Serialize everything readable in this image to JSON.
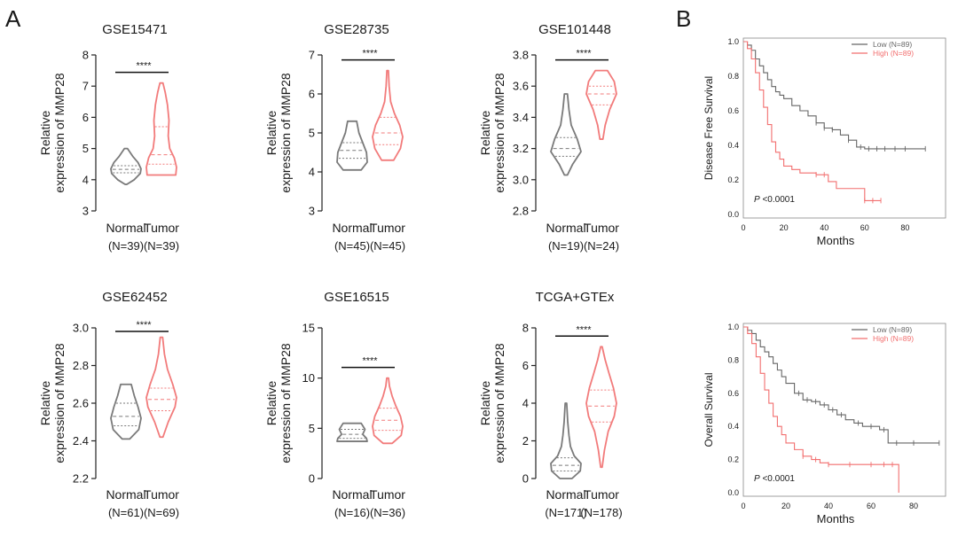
{
  "panel_labels": [
    "A",
    "B"
  ],
  "colors": {
    "normal": "#7a7a7a",
    "tumor": "#f27b7b",
    "axis": "#222222",
    "km_low": "#666666",
    "km_high": "#f26f6f"
  },
  "chart_data": [
    {
      "type": "violin",
      "title": "GSE15471",
      "ylabel_line1": "Relative",
      "ylabel_line2": "expression of MMP28",
      "ylim": [
        3,
        8
      ],
      "yticks": [
        "3",
        "4",
        "5",
        "6",
        "7",
        "8"
      ],
      "significance": "****",
      "groups": [
        {
          "name": "Normal",
          "n": "(N=39)",
          "min": 3.85,
          "max": 5.0,
          "median": 4.33,
          "q1": 4.22,
          "q3": 4.45,
          "shape": [
            [
              3.85,
              0.05
            ],
            [
              4.0,
              0.55
            ],
            [
              4.2,
              0.95
            ],
            [
              4.35,
              1.0
            ],
            [
              4.55,
              0.8
            ],
            [
              4.75,
              0.45
            ],
            [
              5.0,
              0.1
            ]
          ]
        },
        {
          "name": "Tumor",
          "n": "(N=39)",
          "min": 4.15,
          "max": 7.1,
          "median": 4.8,
          "q1": 4.5,
          "q3": 5.7,
          "shape": [
            [
              4.15,
              0.95
            ],
            [
              4.4,
              1.0
            ],
            [
              4.7,
              0.85
            ],
            [
              5.0,
              0.55
            ],
            [
              5.4,
              0.45
            ],
            [
              5.9,
              0.5
            ],
            [
              6.4,
              0.4
            ],
            [
              6.8,
              0.25
            ],
            [
              7.1,
              0.1
            ]
          ]
        }
      ]
    },
    {
      "type": "violin",
      "title": "GSE28735",
      "ylabel_line1": "Relative",
      "ylabel_line2": "expression of MMP28",
      "ylim": [
        3,
        7
      ],
      "yticks": [
        "3",
        "4",
        "5",
        "6",
        "7"
      ],
      "significance": "****",
      "groups": [
        {
          "name": "Normal",
          "n": "(N=45)",
          "min": 4.05,
          "max": 5.3,
          "median": 4.55,
          "q1": 4.35,
          "q3": 4.75,
          "shape": [
            [
              4.05,
              0.6
            ],
            [
              4.25,
              1.0
            ],
            [
              4.5,
              0.95
            ],
            [
              4.75,
              0.7
            ],
            [
              5.0,
              0.45
            ],
            [
              5.3,
              0.3
            ]
          ]
        },
        {
          "name": "Tumor",
          "n": "(N=45)",
          "min": 4.3,
          "max": 6.6,
          "median": 5.0,
          "q1": 4.7,
          "q3": 5.4,
          "shape": [
            [
              4.3,
              0.4
            ],
            [
              4.6,
              0.85
            ],
            [
              4.9,
              1.0
            ],
            [
              5.2,
              0.8
            ],
            [
              5.5,
              0.45
            ],
            [
              5.8,
              0.2
            ],
            [
              6.2,
              0.1
            ],
            [
              6.6,
              0.05
            ]
          ]
        }
      ]
    },
    {
      "type": "violin",
      "title": "GSE101448",
      "ylabel_line1": "Relative",
      "ylabel_line2": "expression of MMP28",
      "ylim": [
        2.8,
        3.8
      ],
      "yticks": [
        "2.8",
        "3.0",
        "3.2",
        "3.4",
        "3.6",
        "3.8"
      ],
      "significance": "****",
      "groups": [
        {
          "name": "Normal",
          "n": "(N=19)",
          "min": 3.03,
          "max": 3.55,
          "median": 3.2,
          "q1": 3.15,
          "q3": 3.27,
          "shape": [
            [
              3.03,
              0.1
            ],
            [
              3.1,
              0.45
            ],
            [
              3.18,
              1.0
            ],
            [
              3.26,
              0.75
            ],
            [
              3.35,
              0.35
            ],
            [
              3.45,
              0.2
            ],
            [
              3.55,
              0.1
            ]
          ]
        },
        {
          "name": "Tumor",
          "n": "(N=24)",
          "min": 3.26,
          "max": 3.7,
          "median": 3.55,
          "q1": 3.48,
          "q3": 3.6,
          "shape": [
            [
              3.26,
              0.1
            ],
            [
              3.35,
              0.25
            ],
            [
              3.45,
              0.55
            ],
            [
              3.55,
              1.0
            ],
            [
              3.63,
              0.85
            ],
            [
              3.7,
              0.4
            ]
          ]
        }
      ]
    },
    {
      "type": "violin",
      "title": "GSE62452",
      "ylabel_line1": "Relative",
      "ylabel_line2": "expression of MMP28",
      "ylim": [
        2.2,
        3.0
      ],
      "yticks": [
        "2.2",
        "2.4",
        "2.6",
        "2.8",
        "3.0"
      ],
      "significance": "****",
      "groups": [
        {
          "name": "Normal",
          "n": "(N=61)",
          "min": 2.41,
          "max": 2.7,
          "median": 2.53,
          "q1": 2.48,
          "q3": 2.6,
          "shape": [
            [
              2.41,
              0.25
            ],
            [
              2.46,
              0.85
            ],
            [
              2.52,
              1.0
            ],
            [
              2.58,
              0.8
            ],
            [
              2.64,
              0.55
            ],
            [
              2.7,
              0.35
            ]
          ]
        },
        {
          "name": "Tumor",
          "n": "(N=69)",
          "min": 2.42,
          "max": 2.95,
          "median": 2.62,
          "q1": 2.56,
          "q3": 2.68,
          "shape": [
            [
              2.42,
              0.1
            ],
            [
              2.5,
              0.45
            ],
            [
              2.58,
              0.9
            ],
            [
              2.63,
              1.0
            ],
            [
              2.7,
              0.75
            ],
            [
              2.78,
              0.4
            ],
            [
              2.86,
              0.2
            ],
            [
              2.95,
              0.08
            ]
          ]
        }
      ]
    },
    {
      "type": "violin",
      "title": "GSE16515",
      "ylabel_line1": "Relative",
      "ylabel_line2": "expression of MMP28",
      "ylim": [
        0,
        15
      ],
      "yticks": [
        "0",
        "5",
        "10",
        "15"
      ],
      "significance": "****",
      "groups": [
        {
          "name": "Normal",
          "n": "(N=16)",
          "min": 3.7,
          "max": 5.5,
          "median": 4.4,
          "q1": 4.0,
          "q3": 4.9,
          "shape": [
            [
              3.7,
              1.0
            ],
            [
              4.0,
              0.95
            ],
            [
              4.4,
              0.7
            ],
            [
              4.9,
              0.85
            ],
            [
              5.5,
              0.6
            ]
          ]
        },
        {
          "name": "Tumor",
          "n": "(N=36)",
          "min": 3.5,
          "max": 10.0,
          "median": 5.8,
          "q1": 4.8,
          "q3": 7.0,
          "shape": [
            [
              3.5,
              0.3
            ],
            [
              4.3,
              0.9
            ],
            [
              5.2,
              1.0
            ],
            [
              6.2,
              0.85
            ],
            [
              7.2,
              0.55
            ],
            [
              8.2,
              0.3
            ],
            [
              9.2,
              0.12
            ],
            [
              10.0,
              0.06
            ]
          ]
        }
      ]
    },
    {
      "type": "violin",
      "title": "TCGA+GTEx",
      "ylabel_line1": "Relative",
      "ylabel_line2": "expression of MMP28",
      "ylim": [
        0,
        8
      ],
      "yticks": [
        "0",
        "2",
        "4",
        "6",
        "8"
      ],
      "significance": "****",
      "groups": [
        {
          "name": "Normal",
          "n": "(N=171)",
          "min": 0.0,
          "max": 4.0,
          "median": 0.7,
          "q1": 0.4,
          "q3": 1.1,
          "shape": [
            [
              0.0,
              0.4
            ],
            [
              0.4,
              0.95
            ],
            [
              0.8,
              1.0
            ],
            [
              1.2,
              0.55
            ],
            [
              1.7,
              0.3
            ],
            [
              2.3,
              0.2
            ],
            [
              3.0,
              0.12
            ],
            [
              4.0,
              0.05
            ]
          ]
        },
        {
          "name": "Tumor",
          "n": "(N=178)",
          "min": 0.6,
          "max": 7.0,
          "median": 3.85,
          "q1": 3.0,
          "q3": 4.7,
          "shape": [
            [
              0.6,
              0.05
            ],
            [
              1.5,
              0.2
            ],
            [
              2.5,
              0.45
            ],
            [
              3.3,
              0.85
            ],
            [
              4.0,
              1.0
            ],
            [
              4.8,
              0.8
            ],
            [
              5.6,
              0.5
            ],
            [
              6.3,
              0.25
            ],
            [
              7.0,
              0.05
            ]
          ]
        }
      ]
    },
    {
      "type": "line",
      "subtype": "kaplan-meier",
      "ylabel": "Disease Free Survival",
      "xlabel": "Months",
      "xlim": [
        0,
        100
      ],
      "ylim": [
        0,
        1.0
      ],
      "xticks": [
        "0",
        "20",
        "40",
        "60",
        "80"
      ],
      "yticks": [
        "0.0",
        "0.2",
        "0.4",
        "0.6",
        "0.8",
        "1.0"
      ],
      "pvalue_prefix": "P",
      "pvalue_rest": " <0.0001",
      "series": [
        {
          "name": "Low (N=89)",
          "x": [
            0,
            2,
            4,
            6,
            8,
            10,
            12,
            14,
            16,
            18,
            20,
            24,
            28,
            32,
            36,
            40,
            44,
            48,
            52,
            56,
            60,
            70,
            80,
            90
          ],
          "y": [
            1.0,
            0.98,
            0.95,
            0.9,
            0.86,
            0.82,
            0.78,
            0.74,
            0.71,
            0.69,
            0.67,
            0.63,
            0.6,
            0.57,
            0.53,
            0.5,
            0.49,
            0.46,
            0.43,
            0.39,
            0.38,
            0.38,
            0.38,
            0.38
          ],
          "censor_x": [
            36,
            40,
            44,
            52,
            58,
            62,
            66,
            70,
            75,
            80,
            90
          ]
        },
        {
          "name": "High (N=89)",
          "x": [
            0,
            2,
            4,
            6,
            8,
            10,
            12,
            14,
            16,
            18,
            20,
            24,
            28,
            32,
            36,
            42,
            46,
            52,
            56,
            60,
            64,
            68
          ],
          "y": [
            1.0,
            0.96,
            0.9,
            0.82,
            0.72,
            0.62,
            0.52,
            0.42,
            0.36,
            0.32,
            0.28,
            0.26,
            0.24,
            0.24,
            0.23,
            0.19,
            0.15,
            0.15,
            0.15,
            0.08,
            0.08,
            0.08
          ],
          "censor_x": [
            36,
            40,
            60,
            64,
            68
          ]
        }
      ]
    },
    {
      "type": "line",
      "subtype": "kaplan-meier",
      "ylabel": "Overall Survival",
      "xlabel": "Months",
      "xlim": [
        0,
        95
      ],
      "ylim": [
        0,
        1.0
      ],
      "xticks": [
        "0",
        "20",
        "40",
        "60",
        "80"
      ],
      "yticks": [
        "0.0",
        "0.2",
        "0.4",
        "0.6",
        "0.8",
        "1.0"
      ],
      "pvalue_prefix": "P",
      "pvalue_rest": " <0.0001",
      "series": [
        {
          "name": "Low (N=89)",
          "x": [
            0,
            2,
            4,
            6,
            8,
            10,
            12,
            14,
            16,
            18,
            20,
            24,
            28,
            32,
            36,
            40,
            44,
            48,
            52,
            56,
            60,
            64,
            68,
            72,
            80,
            92
          ],
          "y": [
            1.0,
            0.98,
            0.96,
            0.92,
            0.88,
            0.85,
            0.82,
            0.78,
            0.74,
            0.7,
            0.66,
            0.6,
            0.56,
            0.55,
            0.53,
            0.5,
            0.47,
            0.44,
            0.42,
            0.4,
            0.4,
            0.38,
            0.3,
            0.3,
            0.3,
            0.3
          ],
          "censor_x": [
            26,
            30,
            34,
            38,
            42,
            46,
            54,
            60,
            66,
            72,
            80,
            92
          ]
        },
        {
          "name": "High (N=89)",
          "x": [
            0,
            2,
            4,
            6,
            8,
            10,
            12,
            14,
            16,
            18,
            20,
            24,
            28,
            32,
            36,
            40,
            50,
            60,
            70,
            73
          ],
          "y": [
            1.0,
            0.96,
            0.9,
            0.82,
            0.72,
            0.62,
            0.54,
            0.46,
            0.4,
            0.35,
            0.3,
            0.26,
            0.22,
            0.2,
            0.18,
            0.17,
            0.17,
            0.17,
            0.17,
            0.0
          ],
          "censor_x": [
            28,
            34,
            40,
            50,
            60,
            66,
            70
          ]
        }
      ]
    }
  ]
}
